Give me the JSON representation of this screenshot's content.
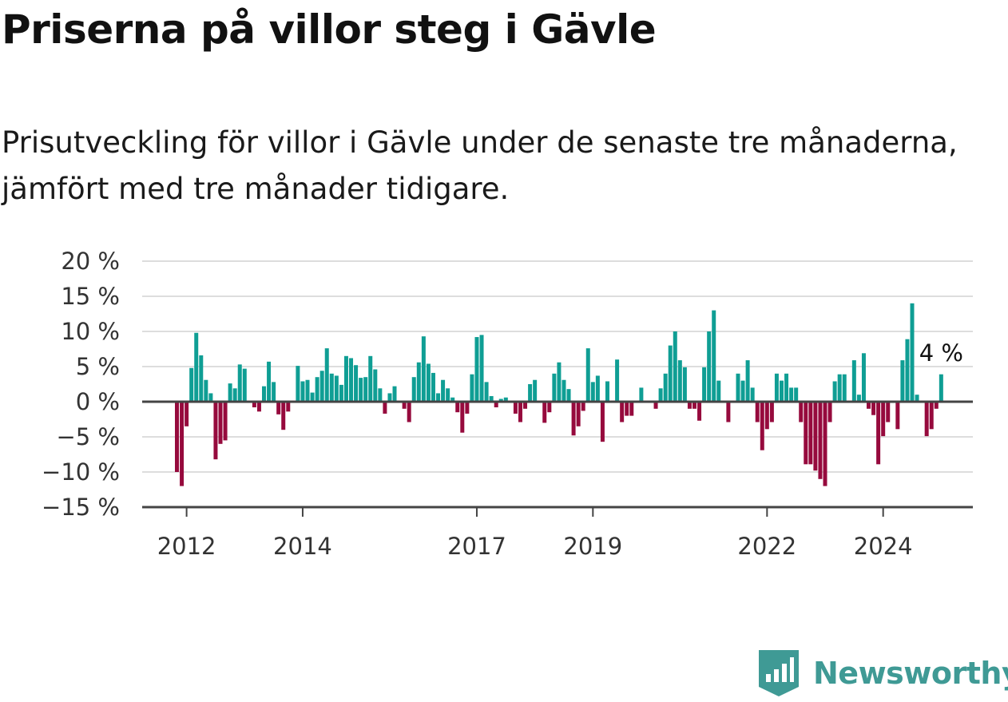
{
  "header": {
    "title": "Priserna på villor steg i Gävle",
    "subtitle": "Prisutveckling för villor i Gävle under de senaste tre månaderna, jämfört med tre månader tidigare."
  },
  "brand": {
    "name": "Newsworthy",
    "icon": "newsworthy-logo-icon"
  },
  "colors": {
    "positive": "#0f9e94",
    "negative": "#960a3d",
    "grid": "#dddddd",
    "axis": "#444444"
  },
  "chart_data": {
    "type": "bar",
    "title": "Priserna på villor steg i Gävle",
    "xlabel": "",
    "ylabel": "",
    "ylim": [
      -15,
      20
    ],
    "yticks": [
      20,
      15,
      10,
      5,
      0,
      -5,
      -10,
      -15
    ],
    "ytick_labels": [
      "20 %",
      "15 %",
      "10 %",
      "5 %",
      "0 %",
      "−5 %",
      "−10 %",
      "−15 %"
    ],
    "xticks": [
      {
        "label": "2012",
        "year": 2012
      },
      {
        "label": "2014",
        "year": 2014
      },
      {
        "label": "2017",
        "year": 2017
      },
      {
        "label": "2019",
        "year": 2019
      },
      {
        "label": "2022",
        "year": 2022
      },
      {
        "label": "2024",
        "year": 2024
      }
    ],
    "x_start": "2011-11",
    "frequency": "monthly",
    "annotation": {
      "label": "4 %",
      "value": 4
    },
    "values": [
      -10,
      -12,
      -3.5,
      4.8,
      9.8,
      6.6,
      3.1,
      1.2,
      -8.2,
      -6,
      -5.5,
      2.6,
      1.9,
      5.3,
      4.7,
      0,
      -0.8,
      -1.4,
      2.2,
      5.7,
      2.8,
      -1.8,
      -4,
      -1.4,
      0,
      5.1,
      2.9,
      3.1,
      1.3,
      3.5,
      4.4,
      7.6,
      4,
      3.7,
      2.4,
      6.5,
      6.2,
      5.2,
      3.4,
      3.5,
      6.5,
      4.6,
      1.9,
      -1.7,
      1.2,
      2.2,
      0,
      -1,
      -2.9,
      3.5,
      5.6,
      9.3,
      5.4,
      4.1,
      1.2,
      3.1,
      1.9,
      0.6,
      -1.5,
      -4.4,
      -1.7,
      3.9,
      9.2,
      9.5,
      2.8,
      0.8,
      -0.8,
      0.4,
      0.6,
      0,
      -1.7,
      -2.9,
      -1,
      2.5,
      3.1,
      0,
      -3,
      -1.5,
      4,
      5.6,
      3.1,
      1.8,
      -4.8,
      -3.5,
      -1.3,
      7.6,
      2.8,
      3.7,
      -5.7,
      2.9,
      0,
      6,
      -2.9,
      -2,
      -2,
      0,
      2,
      0,
      0,
      -1,
      1.9,
      4,
      8,
      10,
      5.9,
      4.9,
      -1,
      -1,
      -2.7,
      4.9,
      10,
      13,
      3,
      0,
      -2.9,
      0,
      4,
      3,
      5.9,
      2,
      -2.9,
      -6.9,
      -3.9,
      -2.9,
      4,
      3,
      4,
      2,
      2,
      -2.9,
      -8.9,
      -8.9,
      -9.8,
      -11,
      -12,
      -2.9,
      2.9,
      3.9,
      3.9,
      0,
      5.9,
      1,
      6.9,
      -1,
      -1.9,
      -8.9,
      -4.9,
      -2.9,
      0,
      -3.9,
      5.9,
      8.9,
      14,
      1,
      0,
      -4.9,
      -3.9,
      -1,
      3.9
    ]
  }
}
